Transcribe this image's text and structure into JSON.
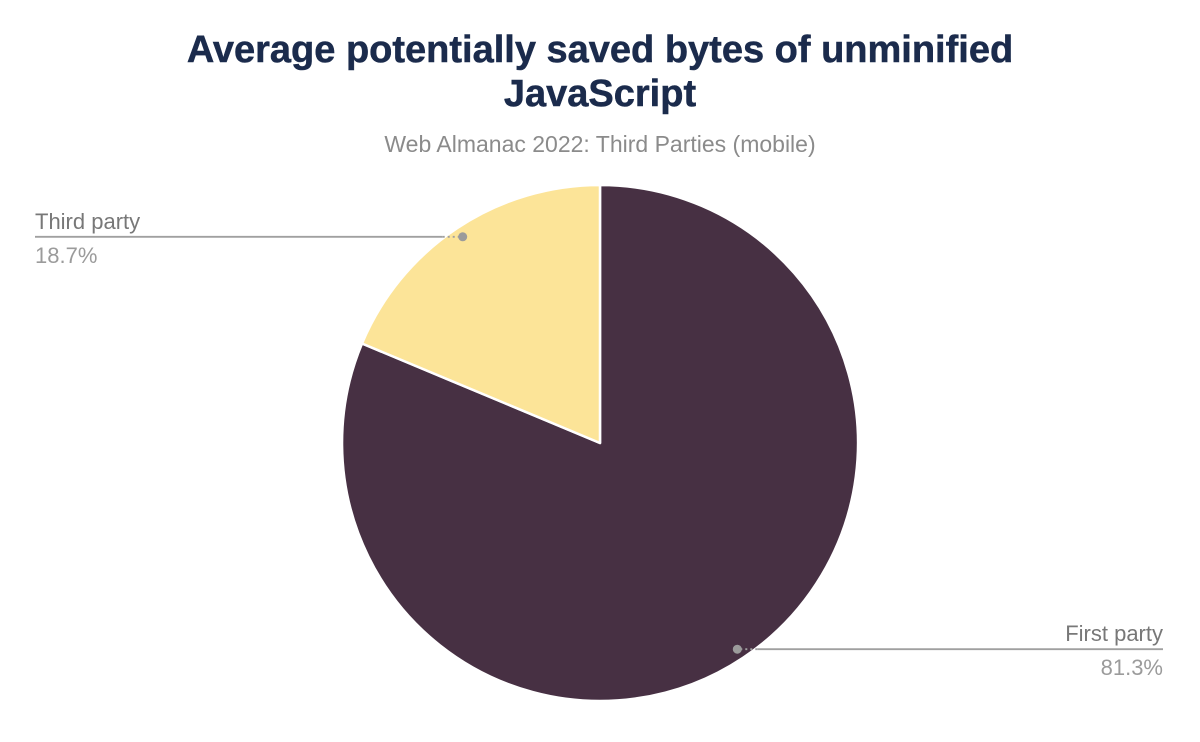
{
  "chart_data": {
    "type": "pie",
    "title": "Average potentially saved bytes of unminified JavaScript",
    "subtitle": "Web Almanac 2022: Third Parties (mobile)",
    "categories": [
      "First party",
      "Third party"
    ],
    "values": [
      81.3,
      18.7
    ],
    "series": [
      {
        "name": "First party",
        "value": 81.3,
        "display": "81.3%",
        "color": "#473043",
        "label_side": "right"
      },
      {
        "name": "Third party",
        "value": 18.7,
        "display": "18.7%",
        "color": "#FCE498",
        "label_side": "left"
      }
    ],
    "unit": "%",
    "start_angle_deg": 0,
    "direction": "clockwise",
    "legend_position": "none",
    "grid": false,
    "slice_border_color": "#FFFFFF",
    "connector_color": "#A0A0A0",
    "dot_color": "#9B9B9B",
    "label_name_color": "#787878",
    "label_value_color": "#9B9B9B",
    "title_color": "#1B2B4C",
    "subtitle_color": "#8B8B8B",
    "background_color": "#FFFFFF"
  }
}
